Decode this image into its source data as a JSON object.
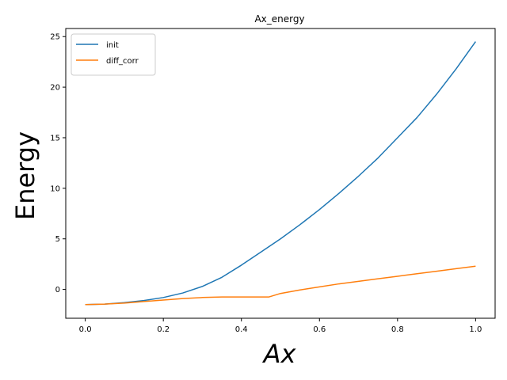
{
  "chart_data": {
    "type": "line",
    "title": "Ax_energy",
    "xlabel": "Ax",
    "ylabel": "Energy",
    "xlim": [
      -0.05,
      1.05
    ],
    "ylim": [
      -2.85,
      25.8
    ],
    "xticks": [
      0.0,
      0.2,
      0.4,
      0.6,
      0.8,
      1.0
    ],
    "xtick_labels": [
      "0.0",
      "0.2",
      "0.4",
      "0.6",
      "0.8",
      "1.0"
    ],
    "yticks": [
      0,
      5,
      10,
      15,
      20,
      25
    ],
    "ytick_labels": [
      "0",
      "5",
      "10",
      "15",
      "20",
      "25"
    ],
    "grid": false,
    "legend_position": "top-left",
    "series": [
      {
        "name": "init",
        "color": "#1f77b4",
        "x": [
          0.0,
          0.05,
          0.1,
          0.15,
          0.2,
          0.25,
          0.3,
          0.35,
          0.4,
          0.45,
          0.5,
          0.55,
          0.6,
          0.65,
          0.7,
          0.75,
          0.8,
          0.85,
          0.9,
          0.95,
          1.0
        ],
        "y": [
          -1.5,
          -1.45,
          -1.3,
          -1.1,
          -0.8,
          -0.35,
          0.3,
          1.2,
          2.4,
          3.7,
          5.0,
          6.4,
          7.9,
          9.5,
          11.2,
          13.0,
          15.0,
          17.0,
          19.3,
          21.8,
          24.5
        ]
      },
      {
        "name": "diff_corr",
        "color": "#ff7f0e",
        "x": [
          0.0,
          0.05,
          0.1,
          0.15,
          0.2,
          0.25,
          0.3,
          0.35,
          0.4,
          0.45,
          0.47,
          0.5,
          0.55,
          0.6,
          0.65,
          0.7,
          0.75,
          0.8,
          0.85,
          0.9,
          0.95,
          1.0
        ],
        "y": [
          -1.5,
          -1.45,
          -1.35,
          -1.2,
          -1.05,
          -0.9,
          -0.8,
          -0.75,
          -0.75,
          -0.75,
          -0.75,
          -0.4,
          -0.05,
          0.25,
          0.55,
          0.8,
          1.05,
          1.3,
          1.55,
          1.8,
          2.05,
          2.3
        ]
      }
    ]
  }
}
